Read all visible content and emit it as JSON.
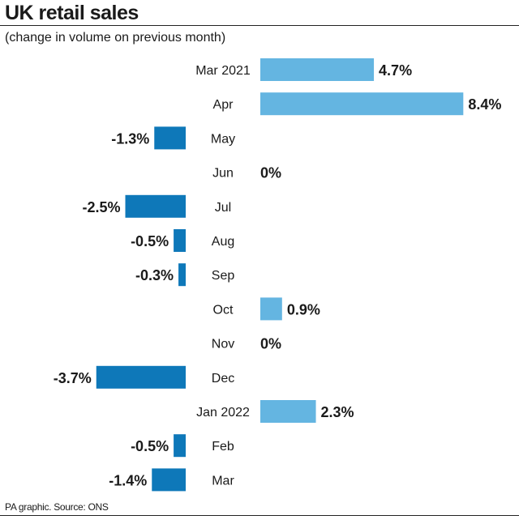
{
  "chart_data": {
    "type": "bar",
    "orientation": "horizontal",
    "title": "UK retail sales",
    "subtitle": "(change in volume on previous month)",
    "categories": [
      "Mar 2021",
      "Apr",
      "May",
      "Jun",
      "Jul",
      "Aug",
      "Sep",
      "Oct",
      "Nov",
      "Dec",
      "Jan 2022",
      "Feb",
      "Mar"
    ],
    "values": [
      4.7,
      8.4,
      -1.3,
      0,
      -2.5,
      -0.5,
      -0.3,
      0.9,
      0,
      -3.7,
      2.3,
      -0.5,
      -1.4
    ],
    "value_labels": [
      "4.7%",
      "8.4%",
      "-1.3%",
      "0%",
      "-2.5%",
      "-0.5%",
      "-0.3%",
      "0.9%",
      "0%",
      "-3.7%",
      "2.3%",
      "-0.5%",
      "-1.4%"
    ],
    "xlabel": "",
    "ylabel": "",
    "grid": false,
    "legend": "none",
    "colors": {
      "positive": "#64b5e1",
      "negative": "#0e78b9",
      "text": "#1a1a1a"
    }
  },
  "footer": {
    "source": "PA graphic. Source: ONS"
  }
}
